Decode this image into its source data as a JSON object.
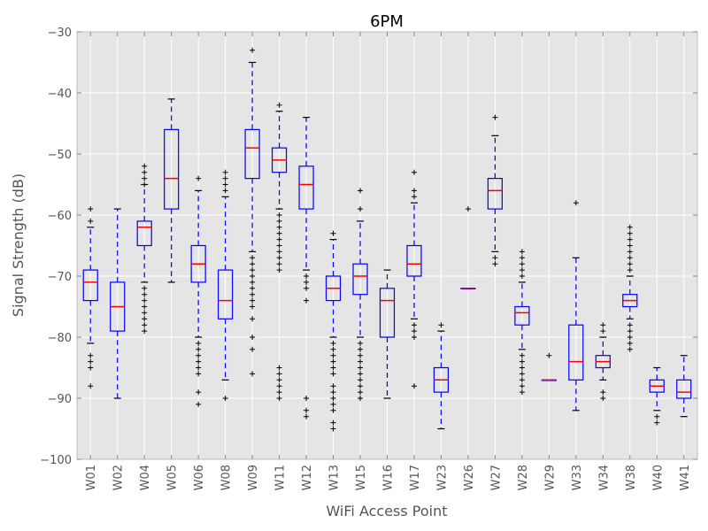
{
  "chart_data": {
    "type": "boxplot",
    "title": "6PM",
    "xlabel": "WiFi Access Point",
    "ylabel": "Signal Strength (dB)",
    "ylim": [
      -100,
      -30
    ],
    "yticks": [
      -100,
      -90,
      -80,
      -70,
      -60,
      -50,
      -40,
      -30
    ],
    "ytick_labels": [
      "−100",
      "−90",
      "−80",
      "−70",
      "−60",
      "−50",
      "−40",
      "−30"
    ],
    "background": "#e5e5e5",
    "grid": true,
    "colors": {
      "box": "#0000ff",
      "median": "#ff0000",
      "whisker": "#0000ff",
      "flier": "#000000"
    },
    "categories": [
      "W01",
      "W02",
      "W04",
      "W05",
      "W06",
      "W08",
      "W09",
      "W11",
      "W12",
      "W13",
      "W15",
      "W16",
      "W17",
      "W23",
      "W26",
      "W27",
      "W28",
      "W29",
      "W33",
      "W34",
      "W38",
      "W40",
      "W41"
    ],
    "boxes": [
      {
        "label": "W01",
        "wlo": -81,
        "q1": -74,
        "med": -71,
        "q3": -69,
        "whi": -62,
        "fliers": [
          -59,
          -61,
          -83,
          -84,
          -85,
          -88
        ]
      },
      {
        "label": "W02",
        "wlo": -90,
        "q1": -79,
        "med": -75,
        "q3": -71,
        "whi": -59,
        "fliers": []
      },
      {
        "label": "W04",
        "wlo": -71,
        "q1": -65,
        "med": -62,
        "q3": -61,
        "whi": -55,
        "fliers": [
          -52,
          -53,
          -54,
          -55,
          -72,
          -73,
          -74,
          -75,
          -76,
          -77,
          -78,
          -79
        ]
      },
      {
        "label": "W05",
        "wlo": -71,
        "q1": -59,
        "med": -54,
        "q3": -46,
        "whi": -41,
        "fliers": []
      },
      {
        "label": "W06",
        "wlo": -80,
        "q1": -71,
        "med": -68,
        "q3": -65,
        "whi": -56,
        "fliers": [
          -54,
          -81,
          -82,
          -83,
          -84,
          -85,
          -86,
          -89,
          -91
        ]
      },
      {
        "label": "W08",
        "wlo": -87,
        "q1": -77,
        "med": -74,
        "q3": -69,
        "whi": -57,
        "fliers": [
          -53,
          -54,
          -55,
          -56,
          -90
        ]
      },
      {
        "label": "W09",
        "wlo": -66,
        "q1": -54,
        "med": -49,
        "q3": -46,
        "whi": -35,
        "fliers": [
          -33,
          -67,
          -68,
          -69,
          -70,
          -71,
          -72,
          -73,
          -74,
          -75,
          -77,
          -80,
          -82,
          -86
        ]
      },
      {
        "label": "W11",
        "wlo": -59,
        "q1": -53,
        "med": -51,
        "q3": -49,
        "whi": -43,
        "fliers": [
          -42,
          -60,
          -61,
          -62,
          -63,
          -64,
          -65,
          -66,
          -67,
          -68,
          -69,
          -85,
          -86,
          -87,
          -88,
          -89,
          -90
        ]
      },
      {
        "label": "W12",
        "wlo": -69,
        "q1": -59,
        "med": -55,
        "q3": -52,
        "whi": -44,
        "fliers": [
          -70,
          -71,
          -72,
          -74,
          -90,
          -92,
          -93
        ]
      },
      {
        "label": "W13",
        "wlo": -80,
        "q1": -74,
        "med": -72,
        "q3": -70,
        "whi": -64,
        "fliers": [
          -63,
          -81,
          -82,
          -83,
          -84,
          -85,
          -86,
          -88,
          -89,
          -90,
          -91,
          -92,
          -94,
          -95
        ]
      },
      {
        "label": "W15",
        "wlo": -80,
        "q1": -73,
        "med": -70,
        "q3": -68,
        "whi": -61,
        "fliers": [
          -56,
          -59,
          -81,
          -82,
          -83,
          -84,
          -85,
          -86,
          -87,
          -88,
          -89,
          -90
        ]
      },
      {
        "label": "W16",
        "wlo": -90,
        "q1": -80,
        "med": -74,
        "q3": -72,
        "whi": -69,
        "fliers": []
      },
      {
        "label": "W17",
        "wlo": -77,
        "q1": -70,
        "med": -68,
        "q3": -65,
        "whi": -58,
        "fliers": [
          -53,
          -56,
          -57,
          -78,
          -79,
          -80,
          -88
        ]
      },
      {
        "label": "W23",
        "wlo": -95,
        "q1": -89,
        "med": -87,
        "q3": -85,
        "whi": -79,
        "fliers": [
          -78
        ]
      },
      {
        "label": "W26",
        "wlo": -72,
        "q1": -72,
        "med": -72,
        "q3": -72,
        "whi": -72,
        "fliers": [
          -59
        ]
      },
      {
        "label": "W27",
        "wlo": -66,
        "q1": -59,
        "med": -56,
        "q3": -54,
        "whi": -47,
        "fliers": [
          -44,
          -67,
          -68
        ]
      },
      {
        "label": "W28",
        "wlo": -82,
        "q1": -78,
        "med": -76,
        "q3": -75,
        "whi": -71,
        "fliers": [
          -66,
          -67,
          -68,
          -69,
          -70,
          -83,
          -84,
          -85,
          -86,
          -87,
          -88,
          -89
        ]
      },
      {
        "label": "W29",
        "wlo": -87,
        "q1": -87,
        "med": -87,
        "q3": -87,
        "whi": -87,
        "fliers": [
          -83
        ]
      },
      {
        "label": "W33",
        "wlo": -92,
        "q1": -87,
        "med": -84,
        "q3": -78,
        "whi": -67,
        "fliers": [
          -58
        ]
      },
      {
        "label": "W34",
        "wlo": -87,
        "q1": -85,
        "med": -84,
        "q3": -83,
        "whi": -80,
        "fliers": [
          -78,
          -79,
          -89,
          -90
        ]
      },
      {
        "label": "W38",
        "wlo": -77,
        "q1": -75,
        "med": -74,
        "q3": -73,
        "whi": -70,
        "fliers": [
          -62,
          -63,
          -64,
          -65,
          -66,
          -67,
          -68,
          -69,
          -78,
          -79,
          -80,
          -81,
          -82
        ]
      },
      {
        "label": "W40",
        "wlo": -92,
        "q1": -89,
        "med": -88,
        "q3": -87,
        "whi": -85,
        "fliers": [
          -93,
          -94
        ]
      },
      {
        "label": "W41",
        "wlo": -93,
        "q1": -90,
        "med": -89,
        "q3": -87,
        "whi": -83,
        "fliers": []
      }
    ]
  }
}
